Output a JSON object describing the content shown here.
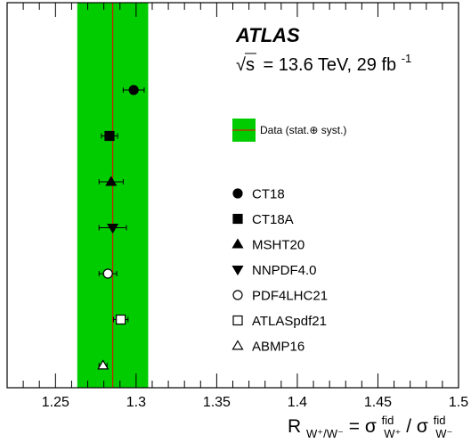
{
  "chart_data": {
    "type": "scatter",
    "experiment": "ATLAS",
    "energy_label_prefix": "= 13.6 TeV, 29 fb",
    "energy_label_exp": "-1",
    "sqrt_symbol": "√s",
    "xlabel": {
      "lhs": "R",
      "lhs_sub": "W⁺/W⁻",
      "eq": " = σ",
      "num_sup": "fid",
      "num_sub": "W⁺",
      "slash": " / σ",
      "den_sup": "fid",
      "den_sub": "W⁻"
    },
    "xlim": [
      1.22,
      1.5
    ],
    "xticks": [
      1.25,
      1.3,
      1.35,
      1.4,
      1.45,
      1.5
    ],
    "xtick_labels": [
      "1.25",
      "1.3",
      "1.35",
      "1.4",
      "1.45",
      "1.5"
    ],
    "grid": false,
    "data": {
      "label": "Data (stat.⊕ syst.)",
      "value": 1.2855,
      "band": [
        1.2635,
        1.3075
      ],
      "band_color": "#00cc00",
      "line_color": "#cc2200"
    },
    "series": [
      {
        "name": "CT18",
        "marker": "circle-filled",
        "x": 1.2985,
        "xerr": 0.0065
      },
      {
        "name": "CT18A",
        "marker": "square-filled",
        "x": 1.2835,
        "xerr": 0.005
      },
      {
        "name": "MSHT20",
        "marker": "triangle-up-filled",
        "x": 1.2845,
        "xerr": 0.0075
      },
      {
        "name": "NNPDF4.0",
        "marker": "triangle-down-filled",
        "x": 1.2855,
        "xerr": 0.0085
      },
      {
        "name": "PDF4LHC21",
        "marker": "circle-open",
        "x": 1.2825,
        "xerr": 0.0055
      },
      {
        "name": "ATLASpdf21",
        "marker": "square-open",
        "x": 1.2905,
        "xerr": 0.0045
      },
      {
        "name": "ABMP16",
        "marker": "triangle-up-open",
        "x": 1.2795,
        "xerr": 0.0025
      }
    ],
    "legend_placement": "right"
  }
}
